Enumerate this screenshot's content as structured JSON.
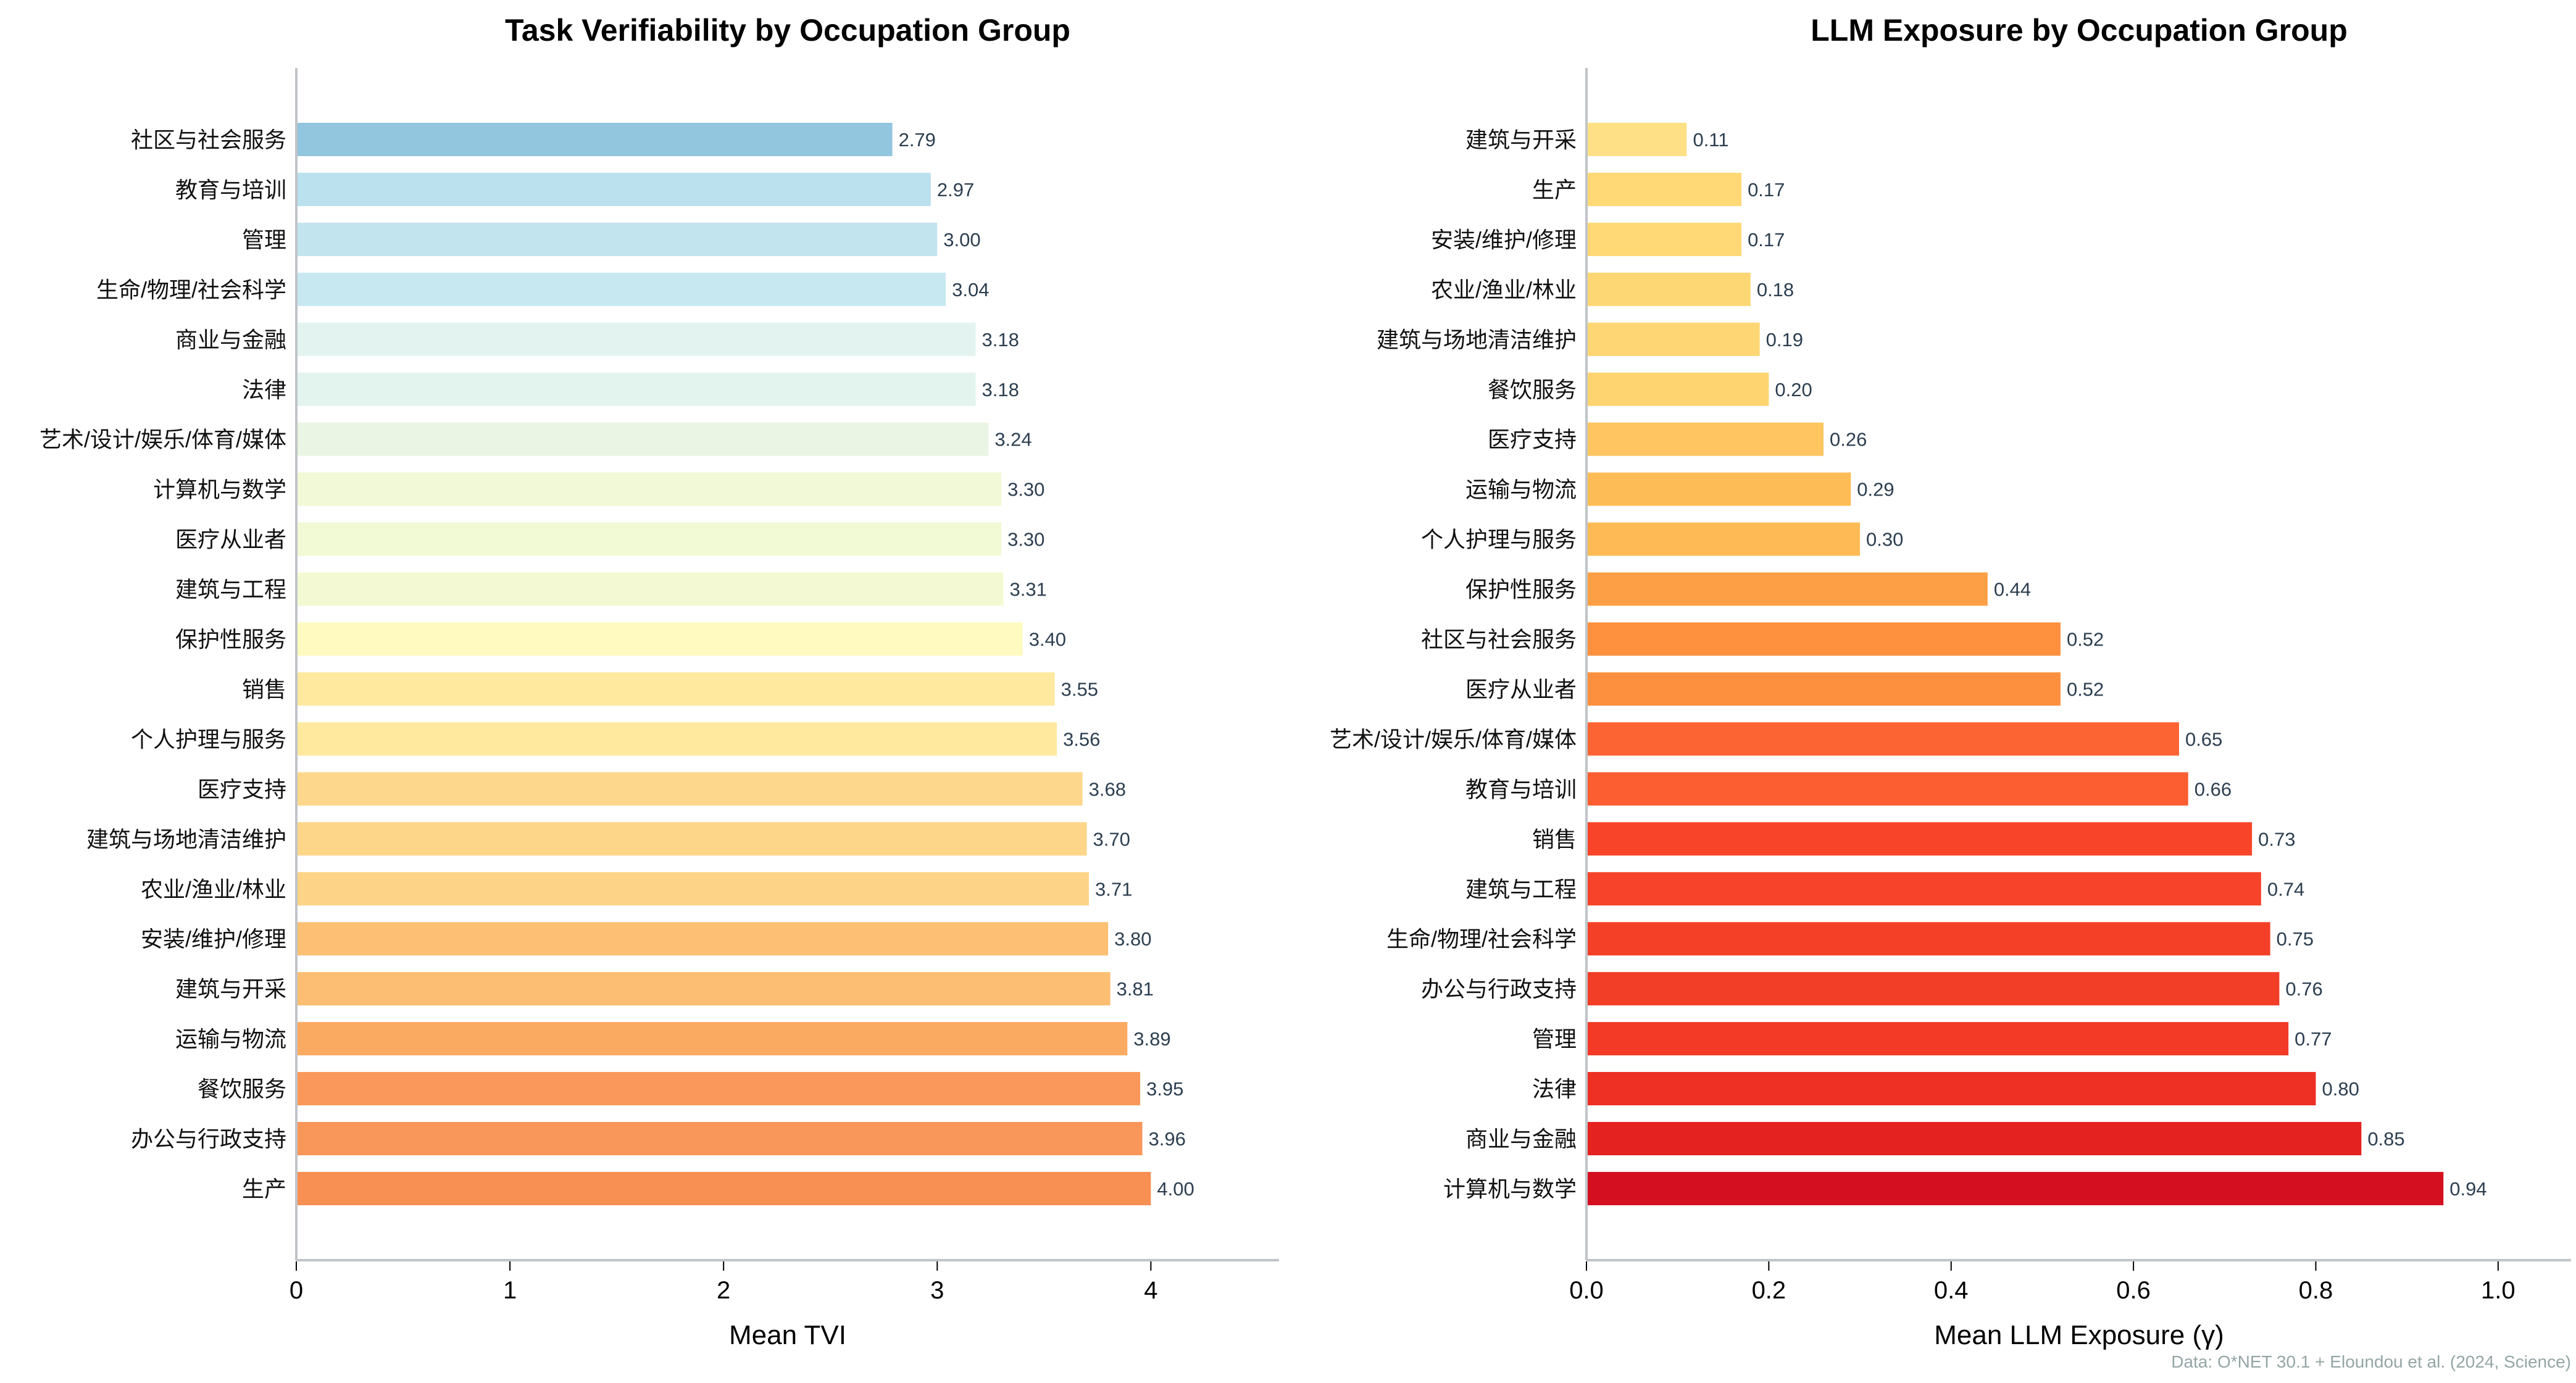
{
  "chart_data": [
    {
      "type": "bar",
      "orientation": "horizontal",
      "title": "Task Verifiability by Occupation Group",
      "xlabel": "Mean TVI",
      "ylabel": "",
      "xlim": [
        0,
        4.6
      ],
      "xticks": [
        0,
        1,
        2,
        3,
        4
      ],
      "xtick_labels": [
        "0",
        "1",
        "2",
        "3",
        "4"
      ],
      "grid": false,
      "categories": [
        "社区与社会服务",
        "教育与培训",
        "管理",
        "生命/物理/社会科学",
        "商业与金融",
        "法律",
        "艺术/设计/娱乐/体育/媒体",
        "计算机与数学",
        "医疗从业者",
        "建筑与工程",
        "保护性服务",
        "销售",
        "个人护理与服务",
        "医疗支持",
        "建筑与场地清洁维护",
        "农业/渔业/林业",
        "安装/维护/修理",
        "建筑与开采",
        "运输与物流",
        "餐饮服务",
        "办公与行政支持",
        "生产"
      ],
      "values": [
        2.79,
        2.97,
        3.0,
        3.04,
        3.18,
        3.18,
        3.24,
        3.3,
        3.3,
        3.31,
        3.4,
        3.55,
        3.56,
        3.68,
        3.7,
        3.71,
        3.8,
        3.81,
        3.89,
        3.95,
        3.96,
        4.0
      ],
      "value_labels": [
        "2.79",
        "2.97",
        "3.00",
        "3.04",
        "3.18",
        "3.18",
        "3.24",
        "3.30",
        "3.30",
        "3.31",
        "3.40",
        "3.55",
        "3.56",
        "3.68",
        "3.70",
        "3.71",
        "3.80",
        "3.81",
        "3.89",
        "3.95",
        "3.96",
        "4.00"
      ],
      "colors": [
        "#92c5de",
        "#bbe1ee",
        "#c2e4ef",
        "#c8e8f1",
        "#e3f4f0",
        "#e3f4ef",
        "#eaf5e3",
        "#f1f9d6",
        "#f1f9d5",
        "#f3fad3",
        "#fffbc0",
        "#fee99f",
        "#fee99e",
        "#fdd78b",
        "#fdd689",
        "#fdd487",
        "#fcbf73",
        "#fcbe72",
        "#fbaa61",
        "#f9985a",
        "#f99659",
        "#f88f53"
      ]
    },
    {
      "type": "bar",
      "orientation": "horizontal",
      "title": "LLM Exposure by Occupation Group",
      "xlabel": "Mean LLM Exposure (γ)",
      "ylabel": "",
      "xlim": [
        0,
        1.08
      ],
      "xticks": [
        0,
        0.2,
        0.4,
        0.6,
        0.8,
        1.0
      ],
      "xtick_labels": [
        "0.0",
        "0.2",
        "0.4",
        "0.6",
        "0.8",
        "1.0"
      ],
      "grid": false,
      "categories": [
        "建筑与开采",
        "生产",
        "安装/维护/修理",
        "农业/渔业/林业",
        "建筑与场地清洁维护",
        "餐饮服务",
        "医疗支持",
        "运输与物流",
        "个人护理与服务",
        "保护性服务",
        "社区与社会服务",
        "医疗从业者",
        "艺术/设计/娱乐/体育/媒体",
        "教育与培训",
        "销售",
        "建筑与工程",
        "生命/物理/社会科学",
        "办公与行政支持",
        "管理",
        "法律",
        "商业与金融",
        "计算机与数学"
      ],
      "values": [
        0.11,
        0.17,
        0.17,
        0.18,
        0.19,
        0.2,
        0.26,
        0.29,
        0.3,
        0.44,
        0.52,
        0.52,
        0.65,
        0.66,
        0.73,
        0.74,
        0.75,
        0.76,
        0.77,
        0.8,
        0.85,
        0.94
      ],
      "value_labels": [
        "0.11",
        "0.17",
        "0.17",
        "0.18",
        "0.19",
        "0.20",
        "0.26",
        "0.29",
        "0.30",
        "0.44",
        "0.52",
        "0.52",
        "0.65",
        "0.66",
        "0.73",
        "0.74",
        "0.75",
        "0.76",
        "0.77",
        "0.80",
        "0.85",
        "0.94"
      ],
      "colors": [
        "#fee187",
        "#fed976",
        "#fed976",
        "#fed775",
        "#fed673",
        "#fed471",
        "#fec561",
        "#febc56",
        "#febb55",
        "#fd9f44",
        "#fd913e",
        "#fd903e",
        "#fd6433",
        "#fc5e31",
        "#f8452a",
        "#f64329",
        "#f54028",
        "#f33e27",
        "#f23a27",
        "#ed2f24",
        "#e4221f",
        "#d41020"
      ]
    }
  ],
  "source_note": "Data: O*NET 30.1 + Eloundou et al. (2024, Science)"
}
